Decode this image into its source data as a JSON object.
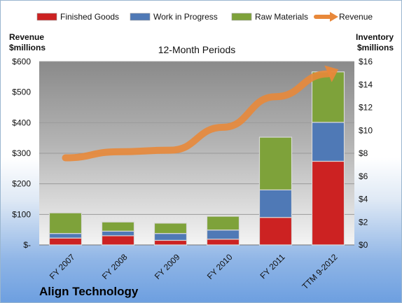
{
  "chart_data": {
    "type": "bar",
    "subtitle": "12-Month Periods",
    "company": "Align Technology",
    "categories": [
      "FY 2007",
      "FY 2008",
      "FY 2009",
      "FY 2010",
      "FY 2011",
      "TTM 9-2012"
    ],
    "series": [
      {
        "name": "Finished Goods",
        "axis": "right",
        "values": [
          0.6,
          0.8,
          0.4,
          0.5,
          2.4,
          7.3
        ],
        "color": "#cc2222"
      },
      {
        "name": "Work in Progress",
        "axis": "right",
        "values": [
          0.4,
          0.4,
          0.6,
          0.8,
          2.4,
          3.4
        ],
        "color": "#4f79b6"
      },
      {
        "name": "Raw Materials",
        "axis": "right",
        "values": [
          1.8,
          0.8,
          0.9,
          1.2,
          4.6,
          4.4
        ],
        "color": "#7ea23a"
      },
      {
        "name": "Revenue",
        "axis": "left",
        "type": "line",
        "values": [
          285,
          305,
          310,
          385,
          485,
          560
        ],
        "color": "#e8883a"
      }
    ],
    "left_axis": {
      "title_lines": [
        "Revenue",
        "$millions"
      ],
      "ylim": [
        0,
        600
      ],
      "ticks": [
        "$-",
        "$100",
        "$200",
        "$300",
        "$400",
        "$500",
        "$600"
      ]
    },
    "right_axis": {
      "title_lines": [
        "Inventory",
        "$millions"
      ],
      "ylim": [
        0,
        16
      ],
      "ticks": [
        "$0",
        "$2",
        "$4",
        "$6",
        "$8",
        "$10",
        "$12",
        "$14",
        "$16"
      ]
    },
    "legend": {
      "placement": "top",
      "items": [
        {
          "label": "Finished Goods",
          "color": "#cc2222",
          "kind": "box"
        },
        {
          "label": "Work in Progress",
          "color": "#4f79b6",
          "kind": "box"
        },
        {
          "label": "Raw Materials",
          "color": "#7ea23a",
          "kind": "box"
        },
        {
          "label": "Revenue",
          "color": "#e8883a",
          "kind": "arrow"
        }
      ]
    },
    "grid": true
  }
}
